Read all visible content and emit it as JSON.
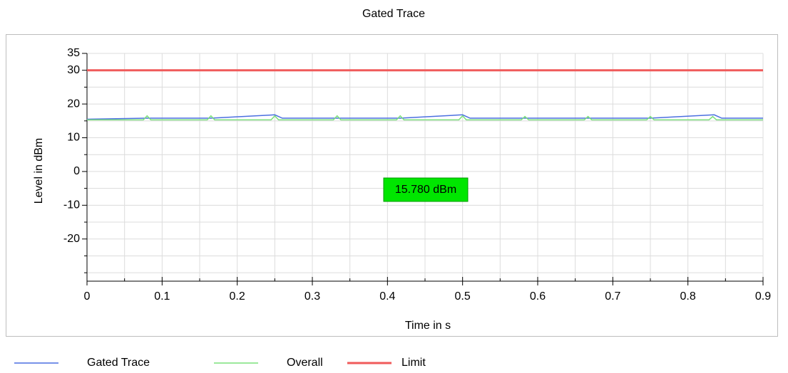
{
  "chart_data": {
    "type": "line",
    "title": "Gated Trace",
    "xlabel": "Time in s",
    "ylabel": "Level in dBm",
    "annotation": "15.780 dBm",
    "xlim": [
      0,
      0.9
    ],
    "ylim": [
      -32.5,
      35
    ],
    "xticks": [
      0,
      0.1,
      0.2,
      0.3,
      0.4,
      0.5,
      0.6,
      0.7,
      0.8,
      0.9
    ],
    "x_minor_ticks": [
      0.05,
      0.15,
      0.25,
      0.35,
      0.45,
      0.55,
      0.65,
      0.75,
      0.85
    ],
    "yticks": [
      -20,
      -10,
      0,
      10,
      20,
      30,
      35
    ],
    "y_minor_ticks": [
      -30,
      -25,
      -15,
      -5,
      5,
      15,
      25
    ],
    "grid": true,
    "legend": "bottom",
    "series": [
      {
        "name": "Gated Trace",
        "color": "#4a6fe0",
        "x": [
          0,
          0.08,
          0.165,
          0.25,
          0.26,
          0.333,
          0.417,
          0.5,
          0.51,
          0.583,
          0.667,
          0.75,
          0.835,
          0.845,
          0.9
        ],
        "values": [
          15.5,
          15.8,
          15.8,
          16.8,
          15.8,
          15.8,
          15.8,
          16.8,
          15.8,
          15.8,
          15.8,
          15.8,
          16.8,
          15.8,
          15.8
        ]
      },
      {
        "name": "Overall",
        "color": "#7be07b",
        "x": [
          0,
          0.075,
          0.08,
          0.085,
          0.16,
          0.165,
          0.17,
          0.245,
          0.25,
          0.255,
          0.328,
          0.333,
          0.338,
          0.412,
          0.417,
          0.422,
          0.495,
          0.5,
          0.505,
          0.578,
          0.583,
          0.588,
          0.662,
          0.667,
          0.672,
          0.745,
          0.75,
          0.755,
          0.828,
          0.833,
          0.838,
          0.9
        ],
        "values": [
          15.3,
          15.3,
          16.5,
          15.3,
          15.3,
          16.5,
          15.3,
          15.3,
          16.5,
          15.3,
          15.3,
          16.5,
          15.3,
          15.3,
          16.5,
          15.3,
          15.3,
          16.5,
          15.3,
          15.3,
          16.3,
          15.3,
          15.3,
          16.3,
          15.3,
          15.3,
          16.3,
          15.3,
          15.3,
          16.3,
          15.3,
          15.3
        ]
      },
      {
        "name": "Limit",
        "color": "#f05a5a",
        "x": [
          0,
          0.9
        ],
        "values": [
          30,
          30
        ]
      }
    ]
  }
}
